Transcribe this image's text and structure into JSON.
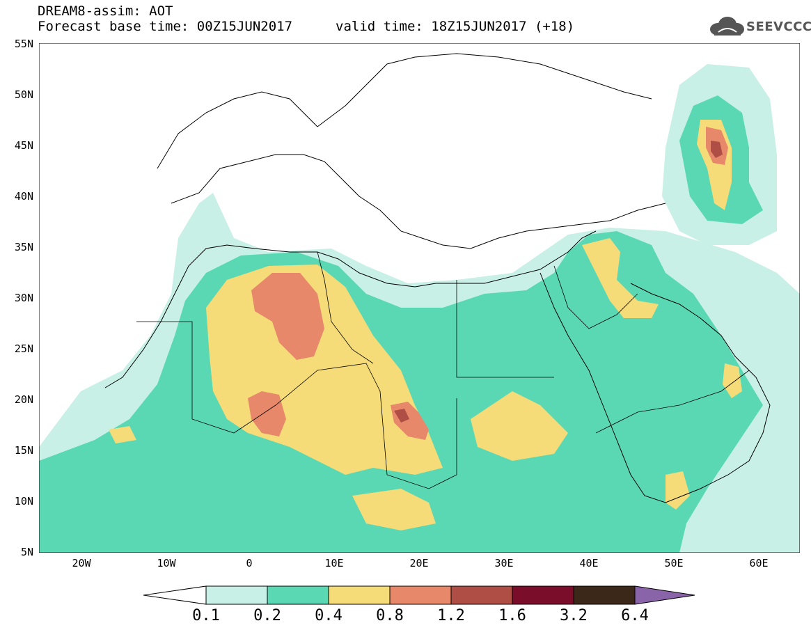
{
  "header": {
    "title": "DREAM8-assim: AOT",
    "base_time": "Forecast base time: 00Z15JUN2017",
    "valid_time": "valid time: 18Z15JUN2017 (+18)"
  },
  "logo": {
    "text": "SEEVCCC",
    "icon": "cloud-logo-icon"
  },
  "map": {
    "projection": "lat-lon",
    "lon_range": [
      -25,
      65
    ],
    "lat_range": [
      5,
      55
    ],
    "lat_labels": [
      "55N",
      "50N",
      "45N",
      "40N",
      "35N",
      "30N",
      "25N",
      "20N",
      "15N",
      "10N",
      "5N"
    ],
    "lon_labels": [
      "20W",
      "10W",
      "0",
      "10E",
      "20E",
      "30E",
      "40E",
      "50E",
      "60E"
    ]
  },
  "colorbar": {
    "thresholds": [
      "0.1",
      "0.2",
      "0.4",
      "0.8",
      "1.2",
      "1.6",
      "3.2",
      "6.4"
    ],
    "colors": [
      "#ffffff",
      "#c8f0e6",
      "#5ad8b4",
      "#f5dc78",
      "#e8886a",
      "#ae4e44",
      "#7a0e2a",
      "#3c2818",
      "#8a64a8"
    ]
  }
}
